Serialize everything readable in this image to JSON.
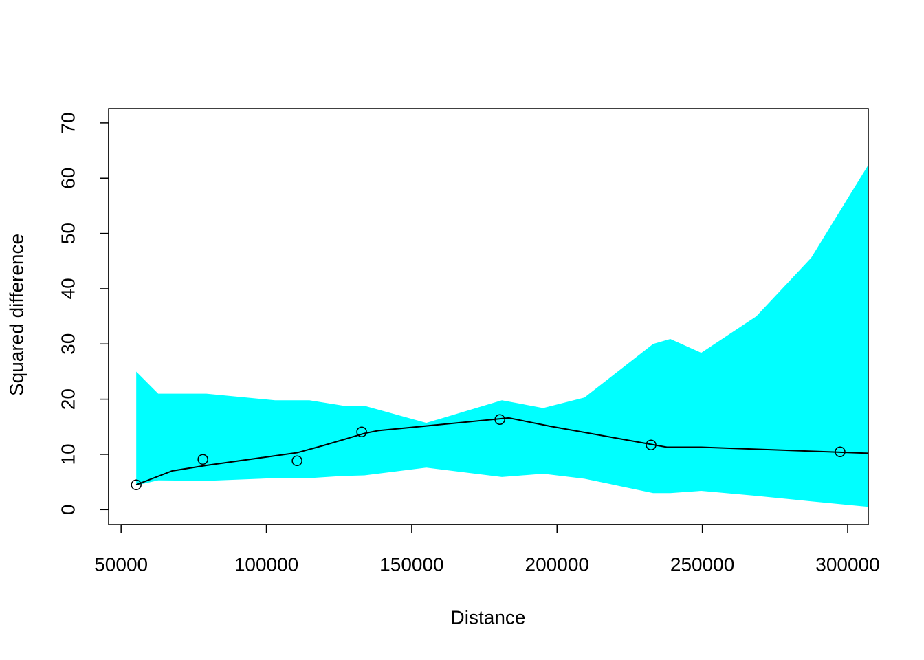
{
  "chart_data": {
    "type": "scatter",
    "x_label": "Distance",
    "y_label": "Squared difference",
    "xlim": [
      45700,
      307100
    ],
    "ylim": [
      -2.7,
      72.6
    ],
    "xticks": [
      50000,
      100000,
      150000,
      200000,
      250000,
      300000
    ],
    "yticks": [
      0,
      10,
      20,
      30,
      40,
      50,
      60,
      70
    ],
    "points": {
      "color": "#000000",
      "x": [
        55203,
        78146,
        110549,
        132781,
        180322,
        232355,
        297398
      ],
      "values": [
        4.48,
        9.09,
        8.84,
        14.07,
        16.31,
        11.71,
        10.46
      ]
    },
    "smooth": {
      "color": "#000000",
      "x": [
        55203,
        67502,
        79328,
        110549,
        119536,
        133728,
        138458,
        183397,
        197588,
        237795,
        249622,
        307095
      ],
      "values": [
        4.5,
        7.0,
        8.0,
        10.3,
        11.6,
        13.8,
        14.3,
        16.6,
        15.1,
        11.3,
        11.3,
        10.2
      ]
    },
    "band": {
      "color": "#00ffff",
      "x": [
        55203,
        62772,
        79328,
        102980,
        114806,
        126632,
        133728,
        155014,
        181031,
        195222,
        209413,
        233065,
        238978,
        249622,
        268543,
        287465,
        307095
      ],
      "upper": [
        25.0,
        21.0,
        21.0,
        19.8,
        19.8,
        18.8,
        18.8,
        15.7,
        19.8,
        18.4,
        20.3,
        30.0,
        30.9,
        28.4,
        35.0,
        45.6,
        62.4
      ],
      "lower": [
        4.4,
        5.3,
        5.2,
        5.7,
        5.7,
        6.1,
        6.2,
        7.6,
        5.9,
        6.5,
        5.6,
        3.0,
        3.0,
        3.4,
        2.5,
        1.5,
        0.5
      ]
    }
  }
}
